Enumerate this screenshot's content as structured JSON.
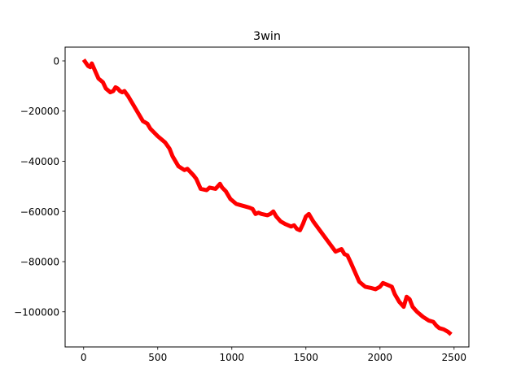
{
  "chart_data": {
    "type": "line",
    "title": "3win",
    "xlabel": "",
    "ylabel": "",
    "xlim": [
      -125,
      2600
    ],
    "ylim": [
      -114000,
      5500
    ],
    "xticks": [
      0,
      500,
      1000,
      1500,
      2000,
      2500
    ],
    "yticks": [
      0,
      -20000,
      -40000,
      -60000,
      -80000,
      -100000
    ],
    "grid": false,
    "legend": "none",
    "series": [
      {
        "color": "#ff0000",
        "x": [
          0,
          30,
          45,
          55,
          70,
          100,
          130,
          150,
          180,
          200,
          215,
          230,
          245,
          260,
          275,
          300,
          330,
          360,
          400,
          430,
          450,
          500,
          550,
          580,
          600,
          640,
          680,
          700,
          740,
          760,
          790,
          830,
          850,
          890,
          920,
          935,
          960,
          990,
          1030,
          1060,
          1090,
          1120,
          1140,
          1160,
          1180,
          1200,
          1240,
          1260,
          1280,
          1300,
          1330,
          1360,
          1400,
          1420,
          1440,
          1460,
          1480,
          1500,
          1510,
          1520,
          1550,
          1600,
          1650,
          1700,
          1740,
          1760,
          1780,
          1800,
          1830,
          1860,
          1900,
          1940,
          1970,
          2000,
          2020,
          2040,
          2060,
          2080,
          2100,
          2130,
          2160,
          2180,
          2200,
          2220,
          2250,
          2290,
          2330,
          2360,
          2380,
          2400,
          2430,
          2460,
          2480
        ],
        "y": [
          500,
          -2000,
          -2500,
          -1000,
          -3000,
          -7000,
          -8500,
          -11000,
          -12500,
          -12000,
          -10500,
          -11000,
          -12000,
          -12500,
          -12000,
          -14000,
          -17000,
          -20000,
          -24000,
          -25000,
          -27000,
          -30000,
          -32500,
          -35000,
          -38000,
          -42000,
          -43500,
          -43000,
          -45500,
          -47000,
          -51000,
          -51500,
          -50500,
          -51000,
          -49000,
          -50500,
          -52000,
          -55000,
          -57000,
          -57500,
          -58000,
          -58500,
          -59000,
          -61000,
          -60500,
          -61000,
          -61500,
          -61000,
          -60000,
          -62000,
          -64000,
          -65000,
          -66000,
          -65500,
          -67000,
          -67500,
          -65000,
          -62000,
          -61500,
          -61000,
          -64000,
          -68000,
          -72000,
          -76000,
          -75000,
          -77000,
          -77500,
          -80000,
          -84000,
          -88000,
          -90000,
          -90500,
          -91000,
          -90000,
          -88500,
          -89000,
          -89500,
          -90000,
          -93000,
          -96000,
          -98000,
          -94000,
          -95000,
          -98000,
          -100000,
          -102000,
          -103500,
          -104000,
          -105500,
          -106500,
          -107000,
          -108000,
          -109000
        ]
      }
    ]
  }
}
